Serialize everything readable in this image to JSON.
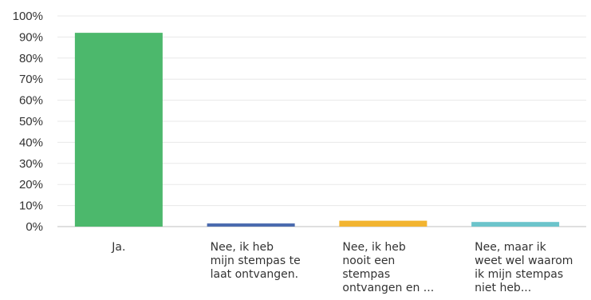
{
  "chart_data": {
    "type": "bar",
    "categories": [
      "Ja.",
      "Nee, ik heb\nmijn stempas te\nlaat ontvangen.",
      "Nee, ik heb\nnooit een\nstempas\nontvangen en ...",
      "Nee, maar ik\nweet wel waarom\nik mijn stempas\nniet heb..."
    ],
    "values": [
      92,
      1.5,
      2.8,
      2.2
    ],
    "colors": [
      "#4cb86c",
      "#4a6aae",
      "#f2b431",
      "#6cc4cb"
    ],
    "ylim": [
      0,
      100
    ],
    "yticks": [
      "0%",
      "10%",
      "20%",
      "30%",
      "40%",
      "50%",
      "60%",
      "70%",
      "80%",
      "90%",
      "100%"
    ],
    "grid": true,
    "title": "",
    "xlabel": "",
    "ylabel": ""
  }
}
